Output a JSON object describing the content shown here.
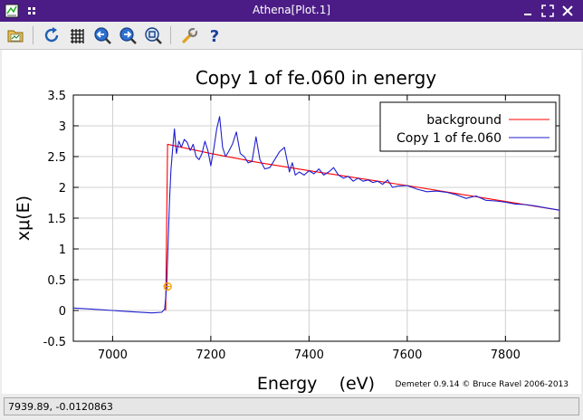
{
  "window": {
    "title": "Athena[Plot.1]"
  },
  "toolbar": {
    "tools": [
      "open-file-icon",
      "refresh-icon",
      "grid-icon",
      "zoom-back-icon",
      "zoom-forward-icon",
      "zoom-reset-icon",
      "configure-icon",
      "help-icon"
    ]
  },
  "status": {
    "text": "7939.89, -0.0120863"
  },
  "colors": {
    "titlebar": "#4b1c86",
    "background_line": "#ff0000",
    "data_line": "#1f1fcf",
    "marker": "#f0a000"
  },
  "chart_data": {
    "type": "line",
    "title": "Copy 1 of fe.060 in energy",
    "xlabel": "Energy    (eV)",
    "ylabel": "xμ(E)",
    "xlim": [
      6920,
      7910
    ],
    "ylim": [
      -0.5,
      3.5
    ],
    "xticks": [
      7000,
      7200,
      7400,
      7600,
      7800
    ],
    "xtick_labels": [
      "7000",
      "7200",
      "7400",
      "7600",
      "7800"
    ],
    "yticks": [
      -0.5,
      0,
      0.5,
      1,
      1.5,
      2,
      2.5,
      3,
      3.5
    ],
    "ytick_labels": [
      "-0.5",
      "0",
      "0.5",
      "1",
      "1.5",
      "2",
      "2.5",
      "3",
      "3.5"
    ],
    "grid": true,
    "legend_position": "top-right",
    "credit": "Demeter 0.9.14 © Bruce Ravel 2006-2013",
    "marker": {
      "x": 7112,
      "y": 0.39
    },
    "series": [
      {
        "name": "background",
        "color": "#ff0000",
        "x": [
          7108,
          7112,
          7200,
          7300,
          7400,
          7500,
          7600,
          7700,
          7800,
          7910
        ],
        "y": [
          0,
          2.7,
          2.55,
          2.4,
          2.27,
          2.15,
          2.03,
          1.9,
          1.77,
          1.63
        ]
      },
      {
        "name": "Copy 1 of fe.060",
        "color": "#1f1fcf",
        "x": [
          6920,
          6960,
          7000,
          7040,
          7080,
          7100,
          7106,
          7110,
          7113,
          7116,
          7119,
          7122,
          7126,
          7130,
          7135,
          7140,
          7146,
          7152,
          7158,
          7164,
          7170,
          7176,
          7182,
          7188,
          7194,
          7200,
          7206,
          7212,
          7218,
          7224,
          7230,
          7236,
          7244,
          7252,
          7260,
          7268,
          7276,
          7284,
          7292,
          7300,
          7310,
          7320,
          7330,
          7340,
          7350,
          7360,
          7366,
          7372,
          7380,
          7390,
          7400,
          7410,
          7420,
          7430,
          7440,
          7450,
          7460,
          7470,
          7480,
          7490,
          7500,
          7510,
          7520,
          7530,
          7540,
          7550,
          7560,
          7570,
          7580,
          7600,
          7620,
          7640,
          7660,
          7680,
          7700,
          7720,
          7740,
          7760,
          7780,
          7800,
          7820,
          7840,
          7860,
          7880,
          7910
        ],
        "y": [
          0.04,
          0.02,
          0.0,
          -0.02,
          -0.04,
          -0.03,
          0.02,
          0.39,
          1.1,
          1.8,
          2.3,
          2.6,
          2.95,
          2.55,
          2.75,
          2.65,
          2.78,
          2.73,
          2.6,
          2.7,
          2.5,
          2.45,
          2.55,
          2.75,
          2.6,
          2.35,
          2.62,
          2.95,
          3.15,
          2.65,
          2.5,
          2.58,
          2.7,
          2.9,
          2.55,
          2.5,
          2.4,
          2.42,
          2.82,
          2.45,
          2.3,
          2.32,
          2.45,
          2.58,
          2.65,
          2.25,
          2.4,
          2.2,
          2.25,
          2.2,
          2.27,
          2.22,
          2.3,
          2.2,
          2.25,
          2.32,
          2.2,
          2.15,
          2.18,
          2.1,
          2.15,
          2.1,
          2.12,
          2.08,
          2.1,
          2.05,
          2.12,
          2.0,
          2.02,
          2.03,
          1.97,
          1.93,
          1.94,
          1.92,
          1.88,
          1.82,
          1.86,
          1.79,
          1.78,
          1.76,
          1.73,
          1.72,
          1.7,
          1.67,
          1.63
        ]
      }
    ]
  }
}
